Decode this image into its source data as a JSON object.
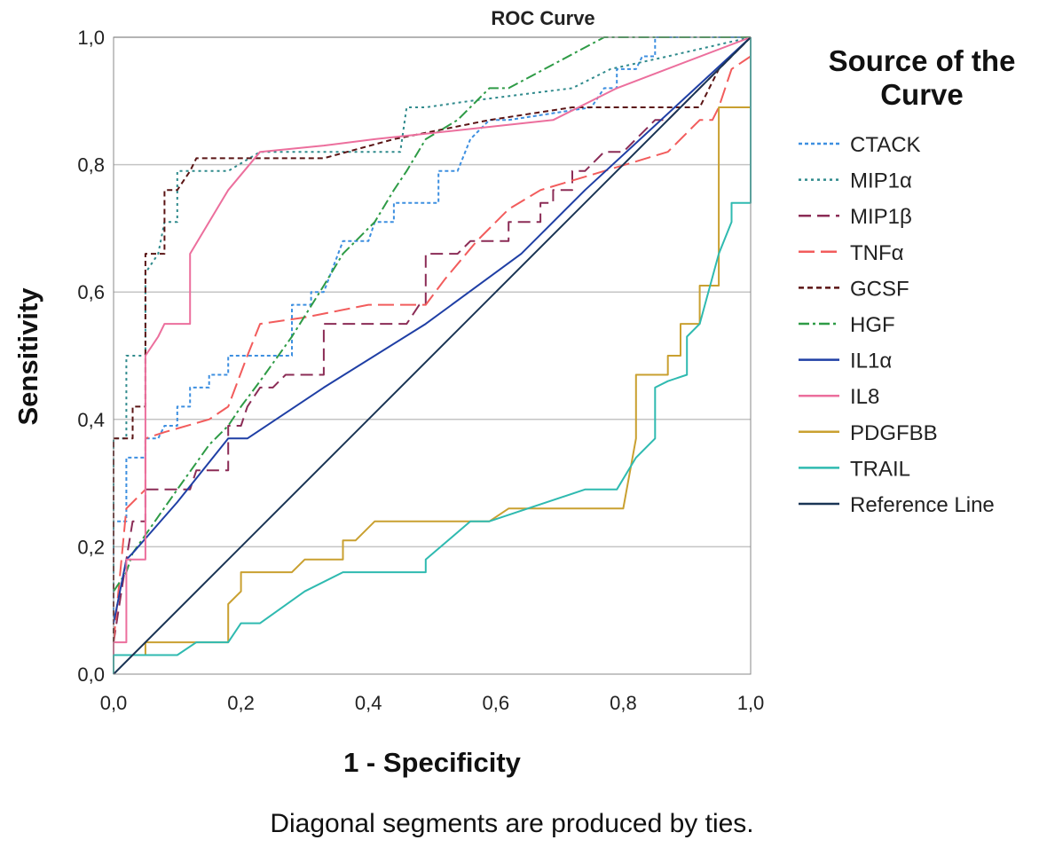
{
  "chart_data": {
    "type": "line",
    "title": "ROC Curve",
    "xlabel": "1 - Specificity",
    "ylabel": "Sensitivity",
    "xlim": [
      0,
      1
    ],
    "ylim": [
      0,
      1
    ],
    "xticks": [
      "0,0",
      "0,2",
      "0,4",
      "0,6",
      "0,8",
      "1,0"
    ],
    "yticks": [
      "0,0",
      "0,2",
      "0,4",
      "0,6",
      "0,8",
      "1,0"
    ],
    "grid": "horizontal",
    "legend_title_lines": [
      "Source of the",
      "Curve"
    ],
    "legend_position": "right",
    "footnote": "Diagonal segments are produced by ties.",
    "series": [
      {
        "name": "CTACK",
        "color": "#3d8fe0",
        "dash": "4,3",
        "points": [
          [
            0,
            0.08
          ],
          [
            0,
            0.24
          ],
          [
            0.02,
            0.24
          ],
          [
            0.02,
            0.34
          ],
          [
            0.05,
            0.34
          ],
          [
            0.05,
            0.37
          ],
          [
            0.07,
            0.37
          ],
          [
            0.08,
            0.39
          ],
          [
            0.1,
            0.39
          ],
          [
            0.1,
            0.42
          ],
          [
            0.12,
            0.42
          ],
          [
            0.12,
            0.45
          ],
          [
            0.15,
            0.45
          ],
          [
            0.15,
            0.47
          ],
          [
            0.18,
            0.47
          ],
          [
            0.18,
            0.5
          ],
          [
            0.28,
            0.5
          ],
          [
            0.28,
            0.58
          ],
          [
            0.31,
            0.58
          ],
          [
            0.31,
            0.6
          ],
          [
            0.33,
            0.6
          ],
          [
            0.36,
            0.68
          ],
          [
            0.4,
            0.68
          ],
          [
            0.41,
            0.71
          ],
          [
            0.44,
            0.71
          ],
          [
            0.44,
            0.74
          ],
          [
            0.51,
            0.74
          ],
          [
            0.51,
            0.79
          ],
          [
            0.54,
            0.79
          ],
          [
            0.56,
            0.84
          ],
          [
            0.59,
            0.87
          ],
          [
            0.62,
            0.87
          ],
          [
            0.75,
            0.89
          ],
          [
            0.77,
            0.92
          ],
          [
            0.79,
            0.92
          ],
          [
            0.79,
            0.95
          ],
          [
            0.82,
            0.95
          ],
          [
            0.83,
            0.97
          ],
          [
            0.85,
            0.97
          ],
          [
            0.85,
            1.0
          ],
          [
            1,
            1.0
          ]
        ]
      },
      {
        "name": "MIP1α",
        "color": "#2f8a8c",
        "dash": "3,4",
        "points": [
          [
            0,
            0.13
          ],
          [
            0,
            0.37
          ],
          [
            0.02,
            0.37
          ],
          [
            0.02,
            0.5
          ],
          [
            0.05,
            0.5
          ],
          [
            0.05,
            0.63
          ],
          [
            0.07,
            0.66
          ],
          [
            0.08,
            0.71
          ],
          [
            0.1,
            0.71
          ],
          [
            0.1,
            0.79
          ],
          [
            0.18,
            0.79
          ],
          [
            0.23,
            0.82
          ],
          [
            0.45,
            0.82
          ],
          [
            0.46,
            0.89
          ],
          [
            0.49,
            0.89
          ],
          [
            0.56,
            0.9
          ],
          [
            0.72,
            0.92
          ],
          [
            0.78,
            0.95
          ],
          [
            0.87,
            0.97
          ],
          [
            1,
            1.0
          ]
        ]
      },
      {
        "name": "MIP1β",
        "color": "#8b2c56",
        "dash": "14,7",
        "points": [
          [
            0,
            0.05
          ],
          [
            0.02,
            0.18
          ],
          [
            0.03,
            0.24
          ],
          [
            0.05,
            0.24
          ],
          [
            0.05,
            0.29
          ],
          [
            0.12,
            0.29
          ],
          [
            0.13,
            0.32
          ],
          [
            0.18,
            0.32
          ],
          [
            0.18,
            0.39
          ],
          [
            0.2,
            0.39
          ],
          [
            0.21,
            0.42
          ],
          [
            0.23,
            0.45
          ],
          [
            0.25,
            0.45
          ],
          [
            0.27,
            0.47
          ],
          [
            0.33,
            0.47
          ],
          [
            0.33,
            0.55
          ],
          [
            0.46,
            0.55
          ],
          [
            0.48,
            0.58
          ],
          [
            0.49,
            0.58
          ],
          [
            0.49,
            0.66
          ],
          [
            0.54,
            0.66
          ],
          [
            0.56,
            0.68
          ],
          [
            0.62,
            0.68
          ],
          [
            0.62,
            0.71
          ],
          [
            0.67,
            0.71
          ],
          [
            0.67,
            0.74
          ],
          [
            0.69,
            0.74
          ],
          [
            0.69,
            0.76
          ],
          [
            0.72,
            0.76
          ],
          [
            0.72,
            0.79
          ],
          [
            0.74,
            0.79
          ],
          [
            0.77,
            0.82
          ],
          [
            0.8,
            0.82
          ],
          [
            0.85,
            0.87
          ],
          [
            0.87,
            0.87
          ],
          [
            0.92,
            0.92
          ],
          [
            0.95,
            0.95
          ],
          [
            0.97,
            0.97
          ],
          [
            1,
            1.0
          ]
        ]
      },
      {
        "name": "TNFα",
        "color": "#f25c5c",
        "dash": "18,7",
        "points": [
          [
            0,
            0.05
          ],
          [
            0.02,
            0.26
          ],
          [
            0.05,
            0.29
          ],
          [
            0.05,
            0.37
          ],
          [
            0.08,
            0.38
          ],
          [
            0.15,
            0.4
          ],
          [
            0.18,
            0.42
          ],
          [
            0.21,
            0.5
          ],
          [
            0.23,
            0.55
          ],
          [
            0.3,
            0.56
          ],
          [
            0.4,
            0.58
          ],
          [
            0.49,
            0.58
          ],
          [
            0.52,
            0.62
          ],
          [
            0.57,
            0.68
          ],
          [
            0.62,
            0.73
          ],
          [
            0.67,
            0.76
          ],
          [
            0.77,
            0.79
          ],
          [
            0.87,
            0.82
          ],
          [
            0.92,
            0.87
          ],
          [
            0.94,
            0.87
          ],
          [
            0.95,
            0.89
          ],
          [
            0.97,
            0.95
          ],
          [
            1,
            0.97
          ],
          [
            1,
            1.0
          ]
        ]
      },
      {
        "name": "GCSF",
        "color": "#5a1414",
        "dash": "6,4",
        "points": [
          [
            0,
            0.05
          ],
          [
            0,
            0.37
          ],
          [
            0.03,
            0.37
          ],
          [
            0.03,
            0.42
          ],
          [
            0.05,
            0.42
          ],
          [
            0.05,
            0.66
          ],
          [
            0.08,
            0.66
          ],
          [
            0.08,
            0.76
          ],
          [
            0.1,
            0.76
          ],
          [
            0.12,
            0.79
          ],
          [
            0.13,
            0.81
          ],
          [
            0.33,
            0.81
          ],
          [
            0.44,
            0.84
          ],
          [
            0.59,
            0.87
          ],
          [
            0.72,
            0.89
          ],
          [
            0.92,
            0.89
          ],
          [
            0.95,
            0.95
          ],
          [
            1,
            1.0
          ]
        ]
      },
      {
        "name": "HGF",
        "color": "#2e9b46",
        "dash": "12,4,3,4",
        "points": [
          [
            0,
            0.13
          ],
          [
            0.02,
            0.16
          ],
          [
            0.03,
            0.19
          ],
          [
            0.1,
            0.29
          ],
          [
            0.15,
            0.36
          ],
          [
            0.18,
            0.39
          ],
          [
            0.2,
            0.42
          ],
          [
            0.23,
            0.46
          ],
          [
            0.28,
            0.53
          ],
          [
            0.33,
            0.61
          ],
          [
            0.36,
            0.66
          ],
          [
            0.41,
            0.71
          ],
          [
            0.44,
            0.76
          ],
          [
            0.46,
            0.79
          ],
          [
            0.49,
            0.84
          ],
          [
            0.54,
            0.87
          ],
          [
            0.59,
            0.92
          ],
          [
            0.62,
            0.92
          ],
          [
            0.77,
            1.0
          ],
          [
            1,
            1.0
          ]
        ]
      },
      {
        "name": "IL1α",
        "color": "#1f3fa5",
        "dash": "",
        "points": [
          [
            0,
            0.08
          ],
          [
            0.02,
            0.18
          ],
          [
            0.03,
            0.19
          ],
          [
            0.1,
            0.27
          ],
          [
            0.18,
            0.37
          ],
          [
            0.21,
            0.37
          ],
          [
            0.33,
            0.45
          ],
          [
            0.49,
            0.55
          ],
          [
            0.64,
            0.66
          ],
          [
            0.74,
            0.76
          ],
          [
            1,
            1.0
          ]
        ]
      },
      {
        "name": "IL8",
        "color": "#ec6f9d",
        "dash": "",
        "points": [
          [
            0,
            0
          ],
          [
            0,
            0.05
          ],
          [
            0.02,
            0.05
          ],
          [
            0.02,
            0.18
          ],
          [
            0.05,
            0.18
          ],
          [
            0.05,
            0.5
          ],
          [
            0.07,
            0.53
          ],
          [
            0.08,
            0.55
          ],
          [
            0.12,
            0.55
          ],
          [
            0.12,
            0.66
          ],
          [
            0.18,
            0.76
          ],
          [
            0.23,
            0.82
          ],
          [
            0.33,
            0.83
          ],
          [
            0.41,
            0.84
          ],
          [
            0.69,
            0.87
          ],
          [
            0.79,
            0.92
          ],
          [
            1,
            1.0
          ]
        ]
      },
      {
        "name": "PDGFBB",
        "color": "#c9a030",
        "dash": "",
        "points": [
          [
            0,
            0.03
          ],
          [
            0.05,
            0.03
          ],
          [
            0.05,
            0.05
          ],
          [
            0.12,
            0.05
          ],
          [
            0.13,
            0.05
          ],
          [
            0.13,
            0.05
          ],
          [
            0.18,
            0.05
          ],
          [
            0.18,
            0.11
          ],
          [
            0.2,
            0.13
          ],
          [
            0.2,
            0.16
          ],
          [
            0.28,
            0.16
          ],
          [
            0.3,
            0.18
          ],
          [
            0.31,
            0.18
          ],
          [
            0.36,
            0.18
          ],
          [
            0.36,
            0.21
          ],
          [
            0.38,
            0.21
          ],
          [
            0.41,
            0.24
          ],
          [
            0.59,
            0.24
          ],
          [
            0.62,
            0.26
          ],
          [
            0.8,
            0.26
          ],
          [
            0.82,
            0.37
          ],
          [
            0.82,
            0.47
          ],
          [
            0.87,
            0.47
          ],
          [
            0.87,
            0.5
          ],
          [
            0.89,
            0.5
          ],
          [
            0.89,
            0.55
          ],
          [
            0.92,
            0.55
          ],
          [
            0.92,
            0.61
          ],
          [
            0.95,
            0.61
          ],
          [
            0.95,
            0.89
          ],
          [
            1,
            0.89
          ],
          [
            1,
            1.0
          ]
        ]
      },
      {
        "name": "TRAIL",
        "color": "#2fbab0",
        "dash": "",
        "points": [
          [
            0,
            0
          ],
          [
            0,
            0.03
          ],
          [
            0.1,
            0.03
          ],
          [
            0.13,
            0.05
          ],
          [
            0.15,
            0.05
          ],
          [
            0.18,
            0.05
          ],
          [
            0.2,
            0.08
          ],
          [
            0.23,
            0.08
          ],
          [
            0.3,
            0.13
          ],
          [
            0.36,
            0.16
          ],
          [
            0.49,
            0.16
          ],
          [
            0.49,
            0.18
          ],
          [
            0.56,
            0.24
          ],
          [
            0.59,
            0.24
          ],
          [
            0.74,
            0.29
          ],
          [
            0.79,
            0.29
          ],
          [
            0.82,
            0.34
          ],
          [
            0.85,
            0.37
          ],
          [
            0.85,
            0.45
          ],
          [
            0.87,
            0.46
          ],
          [
            0.9,
            0.47
          ],
          [
            0.9,
            0.53
          ],
          [
            0.92,
            0.55
          ],
          [
            0.95,
            0.66
          ],
          [
            0.97,
            0.71
          ],
          [
            0.97,
            0.74
          ],
          [
            1,
            0.74
          ],
          [
            1,
            1.0
          ]
        ]
      },
      {
        "name": "Reference Line",
        "color": "#1a3555",
        "dash": "",
        "points": [
          [
            0,
            0
          ],
          [
            1,
            1
          ]
        ]
      }
    ]
  }
}
